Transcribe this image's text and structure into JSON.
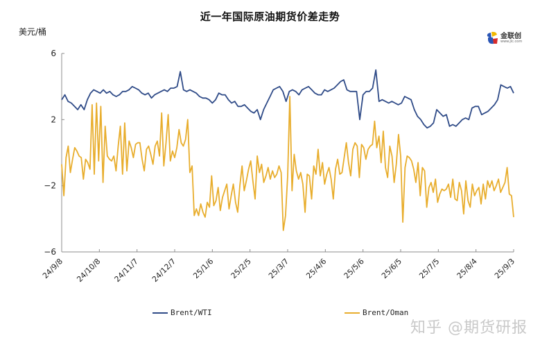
{
  "title": "近一年国际原油期货价差走势",
  "y_unit": "美元/桶",
  "logo": {
    "name": "金联创",
    "url": "www.jlc.com"
  },
  "watermark": "知乎 @期货研报",
  "legend": [
    {
      "label": "Brent/WTI",
      "color": "#2e4a87"
    },
    {
      "label": "Brent/Oman",
      "color": "#e8ad2c"
    }
  ],
  "chart_data": {
    "type": "line",
    "title": "近一年国际原油期货价差走势",
    "xlabel": "",
    "ylabel": "美元/桶",
    "ylim": [
      -6,
      6
    ],
    "yticks": [
      6,
      2,
      -2,
      -6
    ],
    "xticks": [
      "24/9/8",
      "24/10/8",
      "24/11/7",
      "24/12/7",
      "25/1/6",
      "25/2/5",
      "25/3/7",
      "25/4/6",
      "25/5/6",
      "25/6/5",
      "25/7/5",
      "25/8/4",
      "25/9/3"
    ],
    "grid": false,
    "legend_position": "bottom",
    "series": [
      {
        "name": "Brent/WTI",
        "color": "#2e4a87",
        "values": [
          3.2,
          3.5,
          3.1,
          3.0,
          2.8,
          2.6,
          2.9,
          2.6,
          3.2,
          3.6,
          3.8,
          3.7,
          3.6,
          3.8,
          3.6,
          3.7,
          3.5,
          3.4,
          3.5,
          3.7,
          3.7,
          3.8,
          4.0,
          3.9,
          3.8,
          3.6,
          3.5,
          3.6,
          3.3,
          3.5,
          3.6,
          3.7,
          3.8,
          3.7,
          3.9,
          3.9,
          4.0,
          4.9,
          3.8,
          3.7,
          3.8,
          3.7,
          3.6,
          3.4,
          3.3,
          3.3,
          3.2,
          3.0,
          3.2,
          3.6,
          3.5,
          3.5,
          3.2,
          3.0,
          3.1,
          2.8,
          2.8,
          2.9,
          2.7,
          2.5,
          2.4,
          2.6,
          2.0,
          2.6,
          3.0,
          3.4,
          3.8,
          3.9,
          4.0,
          3.7,
          3.1,
          3.7,
          3.8,
          3.7,
          3.5,
          3.8,
          3.9,
          4.0,
          3.8,
          3.6,
          3.5,
          3.5,
          3.8,
          3.7,
          3.8,
          3.9,
          4.1,
          4.3,
          4.4,
          3.8,
          3.7,
          3.7,
          3.7,
          2.0,
          3.5,
          3.7,
          3.7,
          3.9,
          5.0,
          3.1,
          3.2,
          3.1,
          3.0,
          3.1,
          3.0,
          2.9,
          3.0,
          3.4,
          3.3,
          3.2,
          2.6,
          2.2,
          2.0,
          1.7,
          1.5,
          1.6,
          1.8,
          2.6,
          2.4,
          2.2,
          2.3,
          1.6,
          1.7,
          1.6,
          1.8,
          2.0,
          2.1,
          2.0,
          2.7,
          2.8,
          2.8,
          2.3,
          2.4,
          2.5,
          2.7,
          2.9,
          3.2,
          4.1,
          4.0,
          3.9,
          4.0,
          3.6
        ],
        "annotation": "range roughly 1.5 to 5.0"
      },
      {
        "name": "Brent/Oman",
        "color": "#e8ad2c",
        "values": [
          -0.7,
          -2.6,
          -0.3,
          0.4,
          -1.2,
          -0.4,
          0.3,
          0.1,
          -0.2,
          -0.3,
          -1.6,
          -0.4,
          -0.6,
          -1.0,
          2.9,
          -1.3,
          3.0,
          -0.5,
          2.8,
          -1.8,
          1.6,
          -0.2,
          -0.4,
          -0.5,
          -0.2,
          -1.1,
          0.4,
          1.6,
          -1.3,
          1.8,
          -1.1,
          0.7,
          0.3,
          -0.3,
          0.5,
          0.6,
          0.6,
          -0.4,
          -1.1,
          0.2,
          0.4,
          -0.1,
          -0.7,
          0.4,
          0.7,
          -0.2,
          2.4,
          -0.8,
          0.6,
          2.3,
          -0.5,
          0.1,
          -0.3,
          0.3,
          1.4,
          0.6,
          0.4,
          0.8,
          2.0,
          -1.2,
          -0.8,
          -3.8,
          -3.4,
          -3.8,
          -3.1,
          -3.6,
          -3.9,
          -3.0,
          -3.3,
          -1.4,
          -3.2,
          -2.9,
          -2.1,
          -3.5,
          -2.7,
          -2.3,
          -1.9,
          -3.4,
          -2.6,
          -1.9,
          -3.0,
          -3.6,
          -2.0,
          -0.8,
          -2.3,
          -1.7,
          -1.0,
          -0.5,
          -1.7,
          -2.8,
          -0.2,
          -1.2,
          -0.7,
          -1.8,
          -1.4,
          -0.9,
          -1.6,
          -1.1,
          -1.5,
          -1.3,
          -0.8,
          -1.2,
          -4.7,
          -3.8,
          -1.4,
          3.4,
          -2.3,
          -0.1,
          -1.1,
          -1.6,
          -1.2,
          -1.9,
          -3.6,
          -1.3,
          -1.4,
          -2.8,
          -0.8,
          -1.3,
          0.2,
          -1.4,
          -0.6,
          -1.9,
          -1.3,
          -0.9,
          -1.6,
          -2.8,
          -1.0,
          -0.4,
          -1.3,
          -1.2,
          -0.3,
          0.6,
          -0.6,
          -1.4,
          0.2,
          0.6,
          0.4,
          -1.5,
          0.5,
          0.3,
          -0.4,
          0.2,
          0.4,
          0.5,
          1.9,
          0.3,
          1.0,
          -0.6,
          1.3,
          -0.9,
          -1.5,
          0.4,
          -0.2,
          -1.8,
          -0.7,
          1.1,
          -0.2,
          -4.2,
          -0.9,
          -0.2,
          -0.3,
          -0.5,
          -1.0,
          -1.8,
          -0.6,
          -2.6,
          -0.9,
          -1.1,
          -3.3,
          -2.1,
          -1.8,
          -2.4,
          -1.6,
          -3.0,
          -2.5,
          -2.2,
          -2.3,
          -2.2,
          -1.9,
          -2.7,
          -1.6,
          -2.8,
          -2.9,
          -1.8,
          -2.3,
          -3.7,
          -1.7,
          -2.9,
          -3.3,
          -1.9,
          -2.6,
          -2.3,
          -2.1,
          -3.1,
          -1.9,
          -2.8,
          -1.7,
          -2.1,
          -1.7,
          -2.3,
          -2.0,
          -1.6,
          -2.4,
          -2.1,
          -1.8,
          -0.9,
          -2.5,
          -2.6,
          -3.9
        ],
        "annotation": "range roughly -4.8 to 3.4"
      }
    ]
  }
}
